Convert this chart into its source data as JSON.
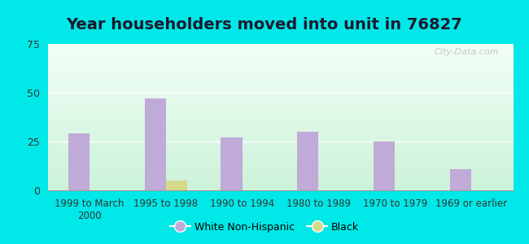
{
  "title": "Year householders moved into unit in 76827",
  "categories": [
    "1999 to March\n2000",
    "1995 to 1998",
    "1990 to 1994",
    "1980 to 1989",
    "1970 to 1979",
    "1969 or earlier"
  ],
  "white_values": [
    29,
    47,
    27,
    30,
    25,
    11
  ],
  "black_values": [
    0,
    5,
    0,
    0,
    0,
    0
  ],
  "white_color": "#c0aad8",
  "black_color": "#d4d98a",
  "ylim": [
    0,
    75
  ],
  "yticks": [
    0,
    25,
    50,
    75
  ],
  "bar_width": 0.28,
  "bg_outer": "#00e8e8",
  "title_fontsize": 14,
  "title_color": "#1a1a2e",
  "watermark": "City-Data.com"
}
